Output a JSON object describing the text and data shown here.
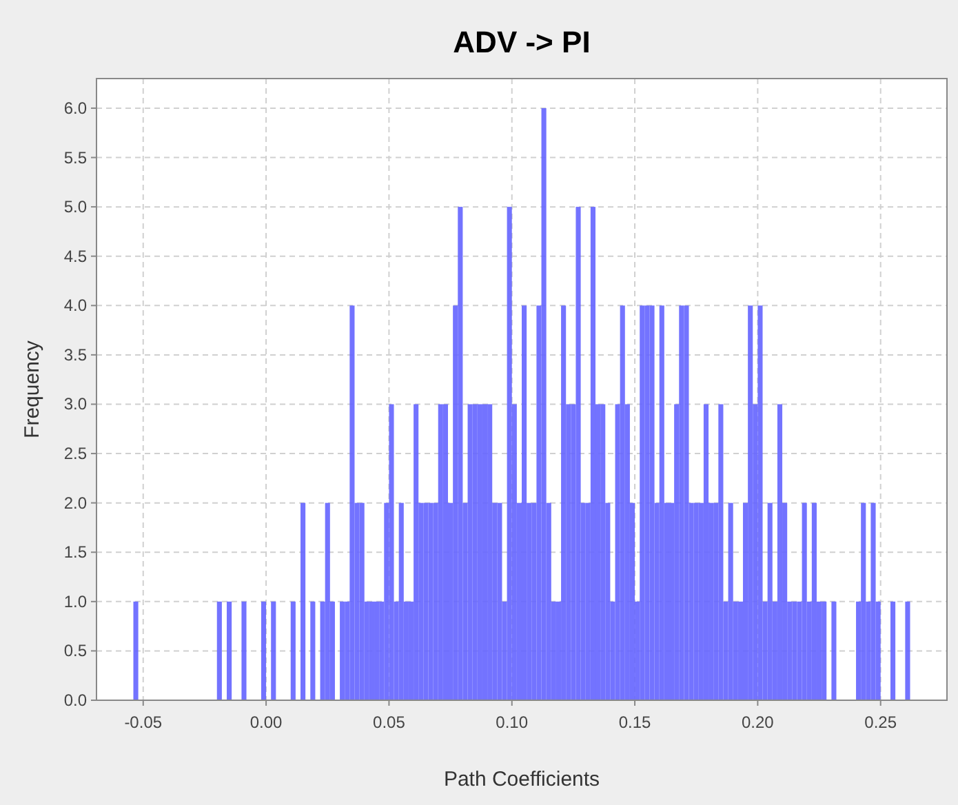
{
  "chart_data": {
    "type": "histogram",
    "title": "ADV -> PI",
    "xlabel": "Path Coefficients",
    "ylabel": "Frequency",
    "color": "#6464ff",
    "grid": true,
    "bins": [
      -0.054,
      -0.052,
      -0.05,
      -0.048,
      -0.046,
      -0.044,
      -0.042,
      -0.04,
      -0.038,
      -0.036,
      -0.034,
      -0.032,
      -0.03,
      -0.028,
      -0.026,
      -0.024,
      -0.022,
      -0.02,
      -0.018,
      -0.016,
      -0.014,
      -0.012,
      -0.01,
      -0.008,
      -0.006,
      -0.004,
      -0.002,
      0,
      0.002,
      0.004,
      0.006,
      0.008,
      0.01,
      0.012,
      0.014,
      0.016,
      0.018,
      0.02,
      0.022,
      0.024,
      0.026,
      0.028,
      0.03,
      0.032,
      0.034,
      0.036,
      0.038,
      0.04,
      0.042,
      0.044,
      0.046,
      0.048,
      0.05,
      0.052,
      0.054,
      0.056,
      0.058,
      0.06,
      0.062,
      0.064,
      0.066,
      0.068,
      0.07,
      0.072,
      0.074,
      0.076,
      0.078,
      0.08,
      0.082,
      0.084,
      0.086,
      0.088,
      0.09,
      0.092,
      0.094,
      0.096,
      0.098,
      0.1,
      0.102,
      0.104,
      0.106,
      0.108,
      0.11,
      0.112,
      0.114,
      0.116,
      0.118,
      0.12,
      0.122,
      0.124,
      0.126,
      0.128,
      0.13,
      0.132,
      0.134,
      0.136,
      0.138,
      0.14,
      0.142,
      0.144,
      0.146,
      0.148,
      0.15,
      0.152,
      0.154,
      0.156,
      0.158,
      0.16,
      0.162,
      0.164,
      0.166,
      0.168,
      0.17,
      0.172,
      0.174,
      0.176,
      0.178,
      0.18,
      0.182,
      0.184,
      0.186,
      0.188,
      0.19,
      0.192,
      0.194,
      0.196,
      0.198,
      0.2,
      0.202,
      0.204,
      0.206,
      0.208,
      0.21,
      0.212,
      0.214,
      0.216,
      0.218,
      0.22,
      0.222,
      0.224,
      0.226,
      0.228,
      0.23,
      0.232,
      0.234,
      0.236,
      0.238,
      0.24,
      0.242,
      0.244,
      0.246,
      0.248,
      0.25,
      0.252,
      0.254,
      0.256,
      0.258,
      0.26,
      0.262
    ],
    "values": [
      1,
      0,
      0,
      0,
      0,
      0,
      0,
      0,
      0,
      0,
      0,
      0,
      0,
      0,
      0,
      0,
      0,
      1,
      0,
      1,
      0,
      0,
      1,
      0,
      0,
      0,
      1,
      0,
      1,
      0,
      0,
      0,
      1,
      0,
      2,
      0,
      1,
      0,
      1,
      2,
      1,
      0,
      1,
      1,
      4,
      2,
      2,
      1,
      1,
      1,
      1,
      2,
      3,
      1,
      2,
      1,
      1,
      3,
      2,
      2,
      2,
      2,
      3,
      3,
      2,
      4,
      5,
      2,
      3,
      3,
      3,
      3,
      3,
      2,
      2,
      1,
      5,
      3,
      2,
      4,
      2,
      2,
      4,
      6,
      2,
      1,
      1,
      4,
      3,
      3,
      5,
      2,
      2,
      5,
      3,
      3,
      2,
      1,
      3,
      4,
      3,
      2,
      1,
      4,
      4,
      4,
      2,
      4,
      2,
      2,
      3,
      4,
      4,
      2,
      2,
      2,
      3,
      2,
      2,
      3,
      1,
      2,
      1,
      1,
      2,
      4,
      3,
      4,
      1,
      2,
      1,
      3,
      2,
      1,
      1,
      1,
      2,
      1,
      2,
      1,
      1,
      0,
      1,
      0,
      0,
      0,
      0,
      1,
      2,
      1,
      2,
      1,
      0,
      0,
      1,
      0,
      0,
      1
    ],
    "xlim": [
      -0.069,
      0.277
    ],
    "ylim": [
      0,
      6.3
    ],
    "xticks": [
      {
        "value": -0.05,
        "label": "-0.05"
      },
      {
        "value": 0,
        "label": "0.00"
      },
      {
        "value": 0.05,
        "label": "0.05"
      },
      {
        "value": 0.1,
        "label": "0.10"
      },
      {
        "value": 0.15,
        "label": "0.15"
      },
      {
        "value": 0.2,
        "label": "0.20"
      },
      {
        "value": 0.25,
        "label": "0.25"
      }
    ],
    "yticks": [
      {
        "value": 0,
        "label": "0.0"
      },
      {
        "value": 0.5,
        "label": "0.5"
      },
      {
        "value": 1,
        "label": "1.0"
      },
      {
        "value": 1.5,
        "label": "1.5"
      },
      {
        "value": 2,
        "label": "2.0"
      },
      {
        "value": 2.5,
        "label": "2.5"
      },
      {
        "value": 3,
        "label": "3.0"
      },
      {
        "value": 3.5,
        "label": "3.5"
      },
      {
        "value": 4,
        "label": "4.0"
      },
      {
        "value": 4.5,
        "label": "4.5"
      },
      {
        "value": 5,
        "label": "5.0"
      },
      {
        "value": 5.5,
        "label": "5.5"
      },
      {
        "value": 6,
        "label": "6.0"
      }
    ]
  }
}
